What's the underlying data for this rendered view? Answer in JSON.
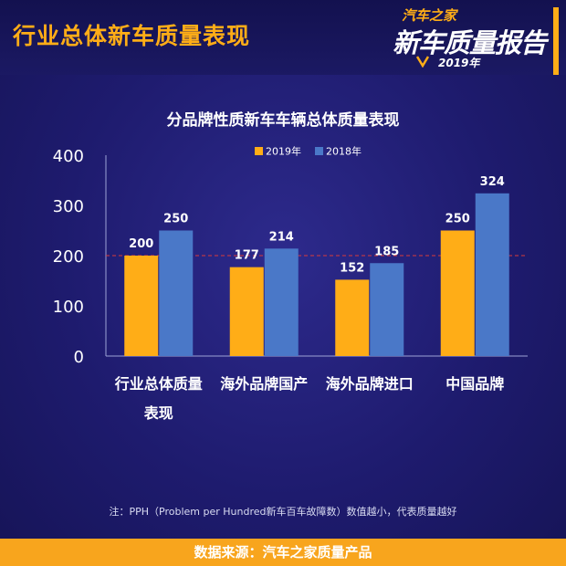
{
  "header": {
    "title": "行业总体新车质量表现",
    "logo_brand": "汽车之家",
    "logo_main": "新车质量报告",
    "logo_year": "2019年"
  },
  "chart_data": {
    "type": "bar",
    "title": "分品牌性质新车车辆总体质量表现",
    "categories": [
      "行业总体质量表现",
      "海外品牌国产",
      "海外品牌进口",
      "中国品牌"
    ],
    "category_lines": [
      [
        "行业总体质量",
        "表现"
      ],
      [
        "海外品牌国产"
      ],
      [
        "海外品牌进口"
      ],
      [
        "中国品牌"
      ]
    ],
    "series": [
      {
        "name": "2019年",
        "color": "#ffad17",
        "values": [
          200,
          177,
          152,
          250
        ]
      },
      {
        "name": "2018年",
        "color": "#4a78c8",
        "values": [
          250,
          214,
          185,
          324
        ]
      }
    ],
    "ylim": [
      0,
      400
    ],
    "yticks": [
      0,
      100,
      200,
      300,
      400
    ],
    "reference_line": 200,
    "reference_color": "#d83b3b",
    "legend_position": "top",
    "grid": false
  },
  "footnote": "注：PPH（Problem per Hundred新车百车故障数）数值越小，代表质量越好",
  "footer": "数据来源：汽车之家质量产品",
  "colors": {
    "accent": "#ffad17",
    "background": "#1e1b6e",
    "footer_bg": "#f8a51d"
  }
}
